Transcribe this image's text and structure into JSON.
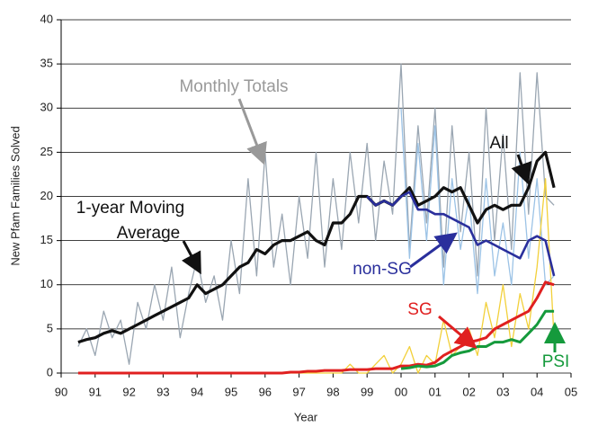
{
  "chart_data": {
    "type": "line",
    "ylabel": "New Pfam Families Solved",
    "xlabel": "Year",
    "xlim": [
      1990,
      2005
    ],
    "ylim": [
      0,
      40
    ],
    "xticks": [
      {
        "value": 1990,
        "label": "90"
      },
      {
        "value": 1991,
        "label": "91"
      },
      {
        "value": 1992,
        "label": "92"
      },
      {
        "value": 1993,
        "label": "93"
      },
      {
        "value": 1994,
        "label": "94"
      },
      {
        "value": 1995,
        "label": "95"
      },
      {
        "value": 1996,
        "label": "96"
      },
      {
        "value": 1997,
        "label": "97"
      },
      {
        "value": 1998,
        "label": "98"
      },
      {
        "value": 1999,
        "label": "99"
      },
      {
        "value": 2000,
        "label": "00"
      },
      {
        "value": 2001,
        "label": "01"
      },
      {
        "value": 2002,
        "label": "02"
      },
      {
        "value": 2003,
        "label": "03"
      },
      {
        "value": 2004,
        "label": "04"
      },
      {
        "value": 2005,
        "label": "05"
      }
    ],
    "yticks": [
      0,
      5,
      10,
      15,
      20,
      25,
      30,
      35,
      40
    ],
    "grid": true,
    "x": [
      1990.5,
      1990.75,
      1991,
      1991.25,
      1991.5,
      1991.75,
      1992,
      1992.25,
      1992.5,
      1992.75,
      1993,
      1993.25,
      1993.5,
      1993.75,
      1994,
      1994.25,
      1994.5,
      1994.75,
      1995,
      1995.25,
      1995.5,
      1995.75,
      1996,
      1996.25,
      1996.5,
      1996.75,
      1997,
      1997.25,
      1997.5,
      1997.75,
      1998,
      1998.25,
      1998.5,
      1998.75,
      1999,
      1999.25,
      1999.5,
      1999.75,
      2000,
      2000.25,
      2000.5,
      2000.75,
      2001,
      2001.25,
      2001.5,
      2001.75,
      2002,
      2002.25,
      2002.5,
      2002.75,
      2003,
      2003.25,
      2003.5,
      2003.75,
      2004,
      2004.25,
      2004.5
    ],
    "series": [
      {
        "color": "#9aa6b2",
        "width": 1.3,
        "values": [
          3,
          5,
          2,
          7,
          4,
          6,
          1,
          8,
          5,
          10,
          6,
          12,
          4,
          9,
          13,
          8,
          11,
          6,
          15,
          9,
          22,
          11,
          25,
          12,
          18,
          10,
          20,
          13,
          25,
          12,
          22,
          14,
          25,
          17,
          26,
          15,
          24,
          18,
          35,
          14,
          28,
          17,
          30,
          12,
          28,
          16,
          25,
          11,
          30,
          15,
          27,
          14,
          34,
          18,
          34,
          20,
          19
        ]
      },
      {
        "color": "#9cc3e6",
        "width": 1.3,
        "values": [
          null,
          null,
          null,
          null,
          null,
          null,
          null,
          null,
          null,
          null,
          null,
          null,
          null,
          null,
          null,
          null,
          null,
          null,
          null,
          null,
          null,
          null,
          null,
          null,
          null,
          null,
          null,
          null,
          null,
          null,
          null,
          null,
          null,
          null,
          null,
          null,
          null,
          null,
          30,
          13,
          26,
          15,
          28,
          10,
          22,
          14,
          20,
          9,
          22,
          11,
          17,
          10,
          25,
          13,
          22,
          10,
          11
        ]
      },
      {
        "color": "#f2d03a",
        "width": 1.3,
        "values": [
          0,
          0,
          0,
          0,
          0,
          0,
          0,
          0,
          0,
          0,
          0,
          0,
          0,
          0,
          0,
          0,
          0,
          0,
          0,
          0,
          0,
          0,
          0,
          0,
          0,
          0,
          0,
          0,
          0,
          0,
          0,
          0,
          1,
          0,
          0,
          1,
          2,
          0,
          1,
          3,
          0,
          2,
          1,
          6,
          2,
          3,
          5,
          2,
          8,
          4,
          10,
          3,
          9,
          5,
          12,
          22,
          4
        ]
      },
      {
        "color": "#111111",
        "width": 3.2,
        "values": [
          3.5,
          3.8,
          4,
          4.5,
          4.8,
          4.5,
          5,
          5.5,
          6,
          6.5,
          7,
          7.5,
          8,
          8.5,
          10,
          9,
          9.5,
          10,
          11,
          12,
          12.5,
          14,
          13.5,
          14.5,
          15,
          15,
          15.5,
          16,
          15,
          14.5,
          17,
          17,
          18,
          20,
          20,
          19,
          19.5,
          19,
          20,
          21,
          19,
          19.5,
          20,
          21,
          20.5,
          21,
          19,
          17,
          18.5,
          19,
          18.5,
          19,
          19,
          21,
          24,
          25,
          21
        ]
      },
      {
        "color": "#2a2f9c",
        "width": 2.6,
        "values": [
          null,
          null,
          null,
          null,
          null,
          null,
          null,
          null,
          null,
          null,
          null,
          null,
          null,
          null,
          null,
          null,
          null,
          null,
          null,
          null,
          null,
          null,
          null,
          null,
          null,
          null,
          null,
          null,
          null,
          null,
          null,
          null,
          null,
          null,
          20,
          19,
          19.5,
          19,
          20,
          20.5,
          18.5,
          18.5,
          18,
          18,
          17.5,
          17,
          16.5,
          14.5,
          15,
          14.5,
          14,
          13.5,
          13,
          15,
          15.5,
          15,
          11
        ]
      },
      {
        "color": "#e02020",
        "width": 3,
        "values": [
          0,
          0,
          0,
          0,
          0,
          0,
          0,
          0,
          0,
          0,
          0,
          0,
          0,
          0,
          0,
          0,
          0,
          0,
          0,
          0,
          0,
          0,
          0,
          0,
          0,
          0.1,
          0.1,
          0.2,
          0.2,
          0.3,
          0.3,
          0.3,
          0.4,
          0.4,
          0.4,
          0.5,
          0.5,
          0.5,
          0.8,
          0.8,
          1,
          0.9,
          1.2,
          2,
          2.5,
          3,
          3.5,
          3.7,
          4,
          5,
          5.5,
          6,
          6.5,
          7,
          8.5,
          10.3,
          10
        ]
      },
      {
        "color": "#159a3c",
        "width": 3,
        "values": [
          null,
          null,
          null,
          null,
          null,
          null,
          null,
          null,
          null,
          null,
          null,
          null,
          null,
          null,
          null,
          null,
          null,
          null,
          null,
          null,
          null,
          null,
          null,
          null,
          null,
          null,
          null,
          null,
          null,
          null,
          null,
          null,
          null,
          null,
          null,
          null,
          null,
          null,
          0.5,
          0.6,
          0.8,
          0.7,
          0.8,
          1.2,
          2,
          2.3,
          2.5,
          3,
          3,
          3.5,
          3.5,
          3.8,
          3.5,
          4.5,
          5.5,
          7,
          7
        ]
      }
    ],
    "annotations": [
      {
        "text": "Monthly Totals",
        "color": "#999999"
      },
      {
        "text": "All",
        "color": "#111111"
      },
      {
        "text": "1-year Moving",
        "color": "#111111"
      },
      {
        "text": "Average",
        "color": "#111111"
      },
      {
        "text": "non-SG",
        "color": "#2a2f9c"
      },
      {
        "text": "SG",
        "color": "#e02020"
      },
      {
        "text": "PSI",
        "color": "#159a3c"
      }
    ]
  }
}
